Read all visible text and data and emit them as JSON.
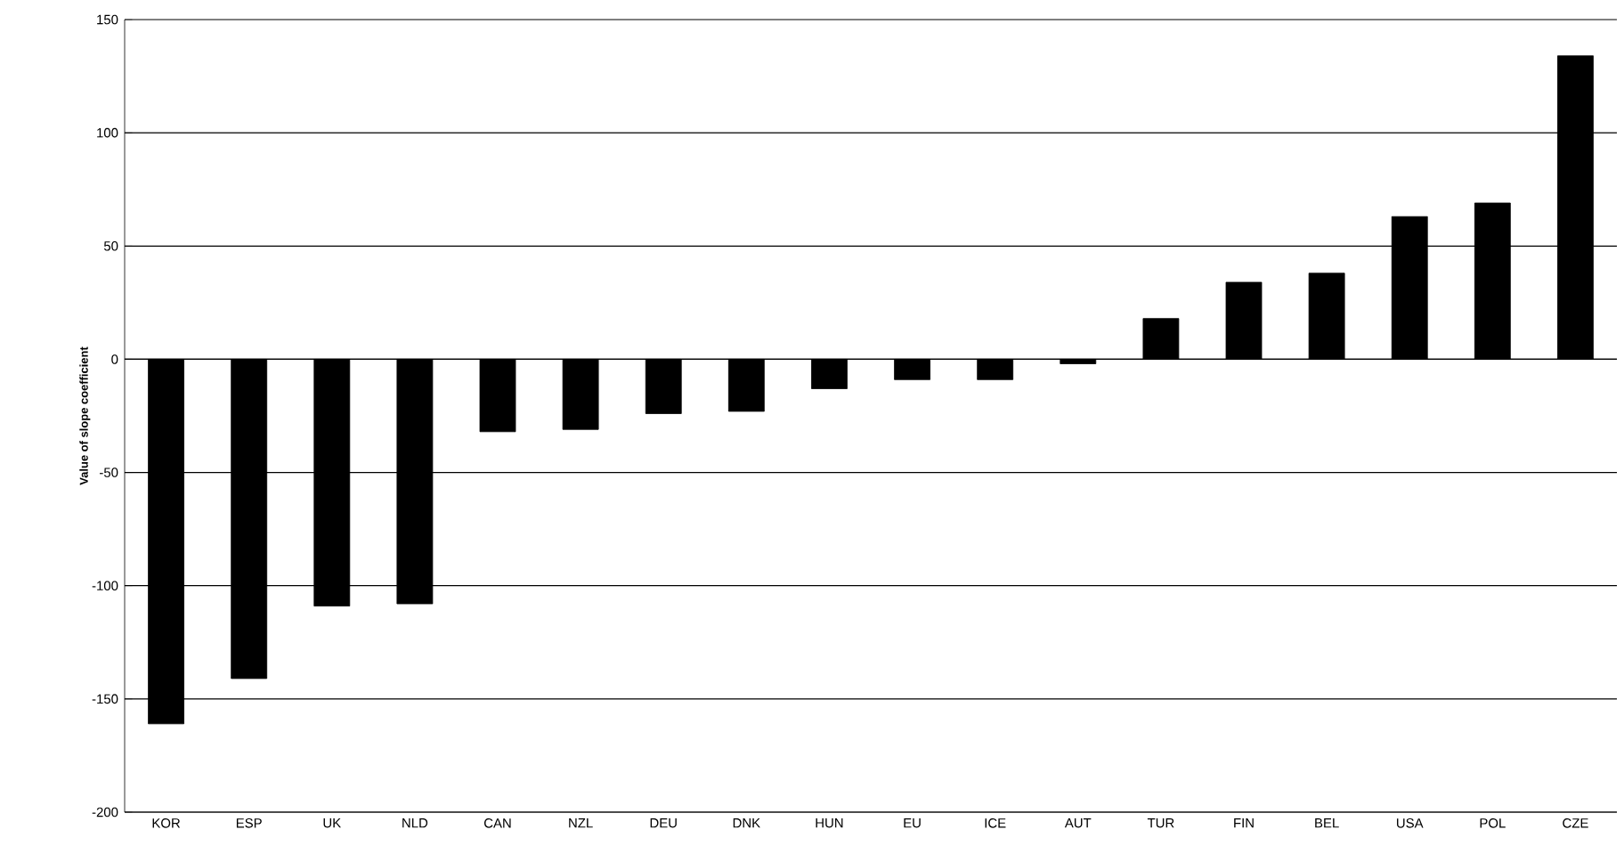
{
  "chart_data": {
    "type": "bar",
    "ylabel": "Value of slope coefficient",
    "categories": [
      "KOR",
      "ESP",
      "UK",
      "NLD",
      "CAN",
      "NZL",
      "DEU",
      "DNK",
      "HUN",
      "EU",
      "ICE",
      "AUT",
      "TUR",
      "FIN",
      "BEL",
      "USA",
      "POL",
      "CZE"
    ],
    "values": [
      -161,
      -141,
      -109,
      -108,
      -32,
      -31,
      -24,
      -23,
      -13,
      -9,
      -9,
      -2,
      18,
      34,
      38,
      63,
      69,
      134
    ],
    "color": "#000000",
    "ylim": [
      -200,
      150
    ],
    "yticks": [
      -200,
      -150,
      -100,
      -50,
      0,
      50,
      100,
      150
    ],
    "grid": "y"
  }
}
